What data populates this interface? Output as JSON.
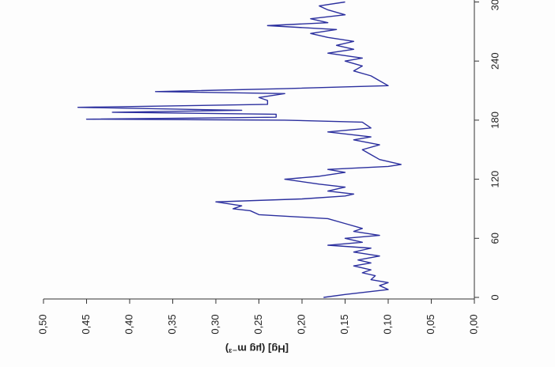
{
  "chart_data": {
    "type": "line",
    "y_label": "[Hg] (µg m⁻³)",
    "x": [
      0,
      3,
      8,
      12,
      15,
      18,
      22,
      25,
      28,
      32,
      35,
      38,
      42,
      46,
      50,
      53,
      56,
      60,
      63,
      67,
      70,
      75,
      80,
      84,
      88,
      90,
      93,
      97,
      100,
      103,
      105,
      108,
      112,
      115,
      120,
      123,
      127,
      130,
      133,
      135,
      140,
      145,
      150,
      155,
      160,
      163,
      168,
      172,
      178,
      180,
      181,
      183,
      186,
      188,
      190,
      193,
      196,
      200,
      203,
      207,
      209,
      212,
      215,
      220,
      225,
      230,
      235,
      240,
      243,
      248,
      252,
      256,
      260,
      264,
      268,
      272,
      276,
      279,
      283,
      287,
      292,
      296,
      300
    ],
    "series": [
      {
        "name": "[Hg]",
        "color": "#2b2f9e",
        "values": [
          0.175,
          0.15,
          0.1,
          0.11,
          0.1,
          0.12,
          0.115,
          0.13,
          0.12,
          0.14,
          0.12,
          0.135,
          0.11,
          0.14,
          0.12,
          0.17,
          0.13,
          0.15,
          0.11,
          0.14,
          0.13,
          0.15,
          0.17,
          0.25,
          0.26,
          0.28,
          0.27,
          0.3,
          0.2,
          0.15,
          0.14,
          0.17,
          0.15,
          0.18,
          0.22,
          0.18,
          0.15,
          0.17,
          0.1,
          0.085,
          0.11,
          0.12,
          0.13,
          0.11,
          0.14,
          0.12,
          0.17,
          0.12,
          0.13,
          0.22,
          0.45,
          0.23,
          0.23,
          0.42,
          0.27,
          0.46,
          0.24,
          0.24,
          0.25,
          0.22,
          0.37,
          0.22,
          0.1,
          0.11,
          0.12,
          0.14,
          0.13,
          0.15,
          0.13,
          0.17,
          0.14,
          0.16,
          0.14,
          0.17,
          0.19,
          0.16,
          0.24,
          0.17,
          0.19,
          0.15,
          0.17,
          0.18,
          0.15
        ]
      }
    ],
    "xlim": [
      0,
      300
    ],
    "xticks": [
      0,
      60,
      120,
      180,
      240,
      300
    ],
    "ylim": [
      0,
      0.5
    ],
    "yticks": [
      {
        "value": 0,
        "label": "0,00"
      },
      {
        "value": 0.05,
        "label": "0,05"
      },
      {
        "value": 0.1,
        "label": "0,10"
      },
      {
        "value": 0.15,
        "label": "0,15"
      },
      {
        "value": 0.2,
        "label": "0,20"
      },
      {
        "value": 0.25,
        "label": "0,25"
      },
      {
        "value": 0.3,
        "label": "0,30"
      },
      {
        "value": 0.35,
        "label": "0,35"
      },
      {
        "value": 0.4,
        "label": "0,40"
      },
      {
        "value": 0.45,
        "label": "0,45"
      },
      {
        "value": 0.5,
        "label": "0,50"
      }
    ],
    "rotation": -90
  }
}
